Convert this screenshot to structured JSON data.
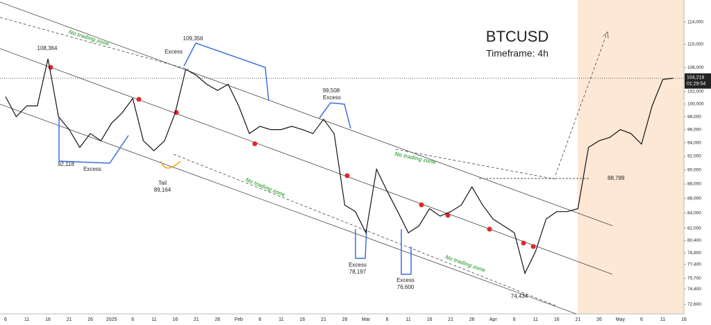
{
  "chart_data": {
    "type": "line",
    "title": "BTCUSD",
    "subtitle": "Timeframe: 4h",
    "categories": [
      "6",
      null,
      "11",
      null,
      "16",
      null,
      "21",
      null,
      "26",
      null,
      "2025",
      null,
      "6",
      null,
      "11",
      null,
      "16",
      null,
      "21",
      null,
      "26",
      null,
      "Feb",
      null,
      "6",
      null,
      "11",
      null,
      "16",
      null,
      "21",
      null,
      "26",
      null,
      "Mar",
      null,
      "6",
      null,
      "11",
      null,
      "16",
      null,
      "21",
      null,
      "26",
      null,
      "Apr",
      null,
      "6",
      null,
      "11",
      null,
      "16",
      null,
      "21",
      null,
      "26",
      null,
      "May",
      null,
      "6",
      null,
      "11",
      null,
      "16"
    ],
    "series": [
      {
        "name": "BTCUSD",
        "color": "#111111",
        "values": [
          101200,
          98000,
          99700,
          99700,
          107500,
          98000,
          96000,
          93300,
          95400,
          94300,
          97000,
          98600,
          100900,
          94300,
          92800,
          94300,
          98600,
          105700,
          104700,
          103200,
          102200,
          103200,
          99700,
          95400,
          96500,
          96000,
          96000,
          96500,
          96000,
          95400,
          97600,
          95400,
          85100,
          84200,
          81400,
          90100,
          87000,
          84200,
          81400,
          82300,
          84600,
          83600,
          84200,
          85100,
          87600,
          85100,
          83200,
          82300,
          81400,
          76300,
          79000,
          83200,
          84200,
          84200,
          84600,
          93300,
          94300,
          94800,
          96000,
          95400,
          93800,
          99700,
          104000,
          104219,
          null
        ]
      }
    ],
    "ylim": [
      71500,
      118100
    ],
    "log_scale": true,
    "yticks": [
      {
        "value": 114000,
        "label": "114,000"
      },
      {
        "value": 110000,
        "label": "110,000"
      },
      {
        "value": 106000,
        "label": "106,000"
      },
      {
        "value": 102000,
        "label": "102,000"
      },
      {
        "value": 100000,
        "label": "100,000"
      },
      {
        "value": 98000,
        "label": "98,000"
      },
      {
        "value": 96000,
        "label": "96,000"
      },
      {
        "value": 94000,
        "label": "94,000"
      },
      {
        "value": 92000,
        "label": "92,000"
      },
      {
        "value": 90000,
        "label": "90,000"
      },
      {
        "value": 88000,
        "label": "88,000"
      },
      {
        "value": 86000,
        "label": "86,000"
      },
      {
        "value": 84000,
        "label": "84,000"
      },
      {
        "value": 82000,
        "label": "82,000"
      },
      {
        "value": 80400,
        "label": "80,400"
      },
      {
        "value": 78800,
        "label": "78,800"
      },
      {
        "value": 77400,
        "label": "77,400"
      },
      {
        "value": 75700,
        "label": "75,700"
      },
      {
        "value": 74400,
        "label": "74,400"
      },
      {
        "value": 72600,
        "label": "72,600"
      }
    ],
    "price_line": {
      "value": 104219,
      "label": "104,219"
    },
    "countdown": "01:29:54",
    "level": {
      "value": 88789,
      "label": "88,789"
    },
    "annotations": [
      "108,364",
      "92,118",
      "Excess",
      "Excess",
      "109,356",
      "99,508",
      "Excess",
      "Tail",
      "89,164",
      "Excess",
      "78,197",
      "Excess",
      "76,600",
      "74,434"
    ],
    "zone_labels": [
      "No trading zone",
      "No trading zone",
      "No trading zone",
      "No trading zone"
    ]
  }
}
